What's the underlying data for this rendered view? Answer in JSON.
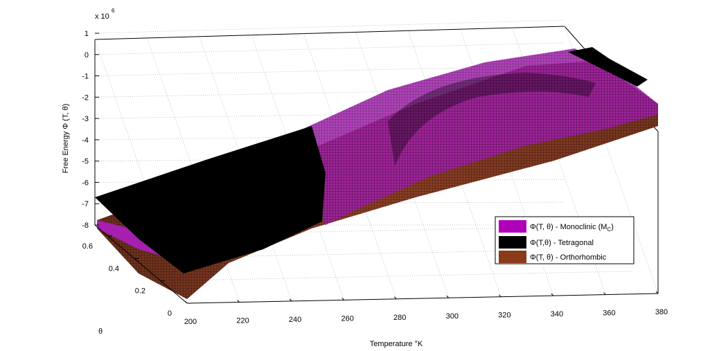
{
  "chart_data": {
    "type": "surface3d",
    "title": "",
    "xlabel": "Temperature °K",
    "ylabel": "θ",
    "zlabel": "Free Energy Φ (T, θ)",
    "z_exponent_label": "x 10",
    "z_exponent_value": "6",
    "x_ticks": [
      "200",
      "220",
      "240",
      "260",
      "280",
      "300",
      "320",
      "340",
      "360",
      "380"
    ],
    "y_ticks": [
      "0",
      "0.2",
      "0.4",
      "0.6"
    ],
    "z_ticks": [
      "1",
      "0",
      "-1",
      "-2",
      "-3",
      "-4",
      "-5",
      "-6",
      "-7",
      "-8"
    ],
    "xlim": [
      200,
      380
    ],
    "ylim": [
      0,
      0.7
    ],
    "zlim": [
      -8,
      1
    ],
    "grid": true,
    "legend_position": "right",
    "series": [
      {
        "name": "Φ(T, θ) - Monoclinic (M",
        "name_sub": "C",
        "name_tail": ")",
        "color": "#b000b8",
        "approx_z_at_theta0": [
          [
            200,
            -8.3
          ],
          [
            260,
            -6.0
          ],
          [
            320,
            -4.5
          ],
          [
            380,
            -3.6
          ]
        ]
      },
      {
        "name": "Φ(T,θ) - Tetragonal",
        "name_sub": "",
        "name_tail": "",
        "color": "#000000",
        "approx_z_at_theta0": [
          [
            200,
            -7.6
          ],
          [
            260,
            -5.6
          ]
        ]
      },
      {
        "name": "Φ(T, θ) - Orthorhombic",
        "name_sub": "",
        "name_tail": "",
        "color": "#8b3a1a",
        "approx_z_at_theta0": [
          [
            200,
            -8.4
          ],
          [
            260,
            -6.2
          ],
          [
            320,
            -4.6
          ],
          [
            380,
            -3.7
          ]
        ]
      }
    ]
  }
}
